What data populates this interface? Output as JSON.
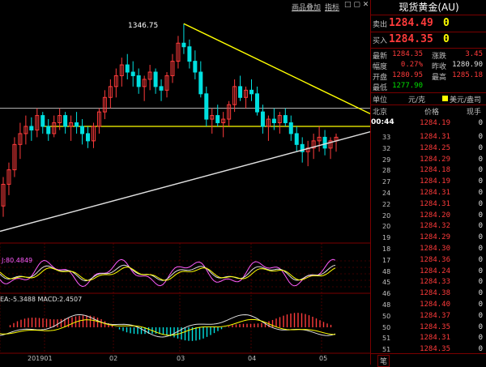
{
  "toolbar": {
    "link1": "画品叠加",
    "link2": "指标",
    "win_btns": "□ ▢ ✕"
  },
  "panel": {
    "title": "现货黄金(AU)",
    "sell": {
      "label": "卖出",
      "price": "1284.49",
      "vol": "0"
    },
    "buy": {
      "label": "买入",
      "price": "1284.35",
      "vol": "0"
    },
    "stats": [
      {
        "l1": "最新",
        "v1": "1284.35",
        "l2": "涨跌",
        "v2": "3.45"
      },
      {
        "l1": "幅度",
        "v1": "0.27%",
        "l2": "昨收",
        "v2": "1280.90"
      },
      {
        "l1": "开盘",
        "v1": "1280.95",
        "l2": "最高",
        "v2": "1285.18"
      },
      {
        "l1": "最低",
        "v1": "1277.90",
        "l2": "",
        "v2": ""
      }
    ],
    "headers": {
      "unit": "单位",
      "unit_val": "元/克",
      "currency": "美元/盎司",
      "col1": "北京",
      "col2": "价格",
      "col3": "现手"
    },
    "current_time": "00:44",
    "ticks": [
      {
        "t": "33",
        "p": "1284.31",
        "v": "0"
      },
      {
        "t": "32",
        "p": "1284.25",
        "v": "0"
      },
      {
        "t": "29",
        "p": "1284.29",
        "v": "0"
      },
      {
        "t": "28",
        "p": "1284.18",
        "v": "0"
      },
      {
        "t": "27",
        "p": "1284.19",
        "v": "0"
      },
      {
        "t": "24",
        "p": "1284.31",
        "v": "0"
      },
      {
        "t": "22",
        "p": "1284.31",
        "v": "0"
      },
      {
        "t": "20",
        "p": "1284.20",
        "v": "0"
      },
      {
        "t": "20",
        "p": "1284.32",
        "v": "0"
      },
      {
        "t": "19",
        "p": "1284.29",
        "v": "0"
      },
      {
        "t": "18",
        "p": "1284.30",
        "v": "0"
      },
      {
        "t": "17",
        "p": "1284.36",
        "v": "0"
      },
      {
        "t": "48",
        "p": "1284.24",
        "v": "0"
      },
      {
        "t": "45",
        "p": "1284.33",
        "v": "0"
      },
      {
        "t": "46",
        "p": "1284.38",
        "v": "0"
      },
      {
        "t": "48",
        "p": "1284.40",
        "v": "0"
      },
      {
        "t": "50",
        "p": "1284.37",
        "v": "0"
      },
      {
        "t": "50",
        "p": "1284.35",
        "v": "0"
      },
      {
        "t": "51",
        "p": "1284.31",
        "v": "0"
      },
      {
        "t": "51",
        "p": "1284.35",
        "v": "0"
      }
    ],
    "first_tick": {
      "t": "44",
      "p": "1284.19",
      "v": "0"
    },
    "footer_tab": "笔"
  },
  "chart": {
    "high_label": "1346.75",
    "kdj_label": "J:80.4849",
    "macd_label": "EA:-5.3488 MACD:2.4507",
    "x_labels": [
      "201901",
      "02",
      "03",
      "04",
      "05"
    ],
    "colors": {
      "up": "#ff3b3b",
      "down": "#00e0e0",
      "trend": "#ffff00",
      "support": "#e0e0e0",
      "grid": "#7a0000"
    }
  },
  "chart_data": {
    "type": "candlestick",
    "ohlc": [
      [
        1246,
        1262,
        1240,
        1258
      ],
      [
        1258,
        1270,
        1252,
        1266
      ],
      [
        1266,
        1284,
        1262,
        1280
      ],
      [
        1280,
        1292,
        1272,
        1286
      ],
      [
        1286,
        1296,
        1280,
        1290
      ],
      [
        1290,
        1295,
        1282,
        1288
      ],
      [
        1288,
        1300,
        1284,
        1296
      ],
      [
        1296,
        1298,
        1286,
        1290
      ],
      [
        1290,
        1294,
        1282,
        1286
      ],
      [
        1286,
        1296,
        1284,
        1292
      ],
      [
        1292,
        1300,
        1288,
        1296
      ],
      [
        1296,
        1298,
        1286,
        1290
      ],
      [
        1290,
        1296,
        1282,
        1292
      ],
      [
        1292,
        1298,
        1286,
        1290
      ],
      [
        1290,
        1294,
        1280,
        1286
      ],
      [
        1286,
        1290,
        1278,
        1282
      ],
      [
        1282,
        1292,
        1278,
        1290
      ],
      [
        1290,
        1300,
        1286,
        1298
      ],
      [
        1298,
        1310,
        1294,
        1306
      ],
      [
        1306,
        1316,
        1300,
        1312
      ],
      [
        1312,
        1322,
        1306,
        1318
      ],
      [
        1318,
        1328,
        1312,
        1324
      ],
      [
        1324,
        1330,
        1316,
        1320
      ],
      [
        1320,
        1326,
        1312,
        1318
      ],
      [
        1318,
        1322,
        1308,
        1312
      ],
      [
        1312,
        1318,
        1304,
        1316
      ],
      [
        1316,
        1324,
        1310,
        1320
      ],
      [
        1320,
        1322,
        1308,
        1312
      ],
      [
        1312,
        1316,
        1304,
        1310
      ],
      [
        1310,
        1320,
        1306,
        1318
      ],
      [
        1318,
        1330,
        1314,
        1326
      ],
      [
        1326,
        1340,
        1322,
        1336
      ],
      [
        1336,
        1346.75,
        1330,
        1334
      ],
      [
        1334,
        1338,
        1322,
        1326
      ],
      [
        1326,
        1332,
        1316,
        1320
      ],
      [
        1320,
        1326,
        1306,
        1308
      ],
      [
        1308,
        1312,
        1290,
        1294
      ],
      [
        1294,
        1300,
        1286,
        1296
      ],
      [
        1296,
        1302,
        1290,
        1292
      ],
      [
        1292,
        1298,
        1284,
        1294
      ],
      [
        1294,
        1304,
        1290,
        1302
      ],
      [
        1302,
        1316,
        1298,
        1312
      ],
      [
        1312,
        1318,
        1304,
        1306
      ],
      [
        1306,
        1312,
        1300,
        1310
      ],
      [
        1310,
        1316,
        1304,
        1308
      ],
      [
        1308,
        1312,
        1296,
        1298
      ],
      [
        1298,
        1302,
        1286,
        1290
      ],
      [
        1290,
        1296,
        1282,
        1294
      ],
      [
        1294,
        1300,
        1288,
        1292
      ],
      [
        1292,
        1298,
        1286,
        1296
      ],
      [
        1296,
        1300,
        1290,
        1292
      ],
      [
        1292,
        1296,
        1282,
        1286
      ],
      [
        1286,
        1290,
        1276,
        1280
      ],
      [
        1280,
        1284,
        1270,
        1276
      ],
      [
        1276,
        1282,
        1268,
        1278
      ],
      [
        1278,
        1286,
        1272,
        1282
      ],
      [
        1282,
        1290,
        1276,
        1284
      ],
      [
        1284,
        1288,
        1274,
        1278
      ],
      [
        1278,
        1284,
        1272,
        1282
      ],
      [
        1282,
        1286,
        1276,
        1284
      ]
    ],
    "high": 1346.75
  }
}
